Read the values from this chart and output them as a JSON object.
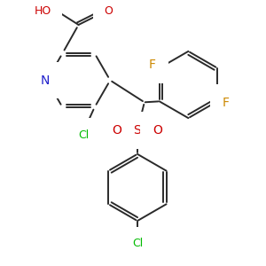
{
  "background_color": "#ffffff",
  "bond_color": "#2a2a2a",
  "atom_colors": {
    "N": "#2020cc",
    "O": "#cc0000",
    "Cl": "#00bb00",
    "F": "#cc8800",
    "S": "#cc0000"
  },
  "figsize": [
    3.0,
    3.0
  ],
  "dpi": 100
}
